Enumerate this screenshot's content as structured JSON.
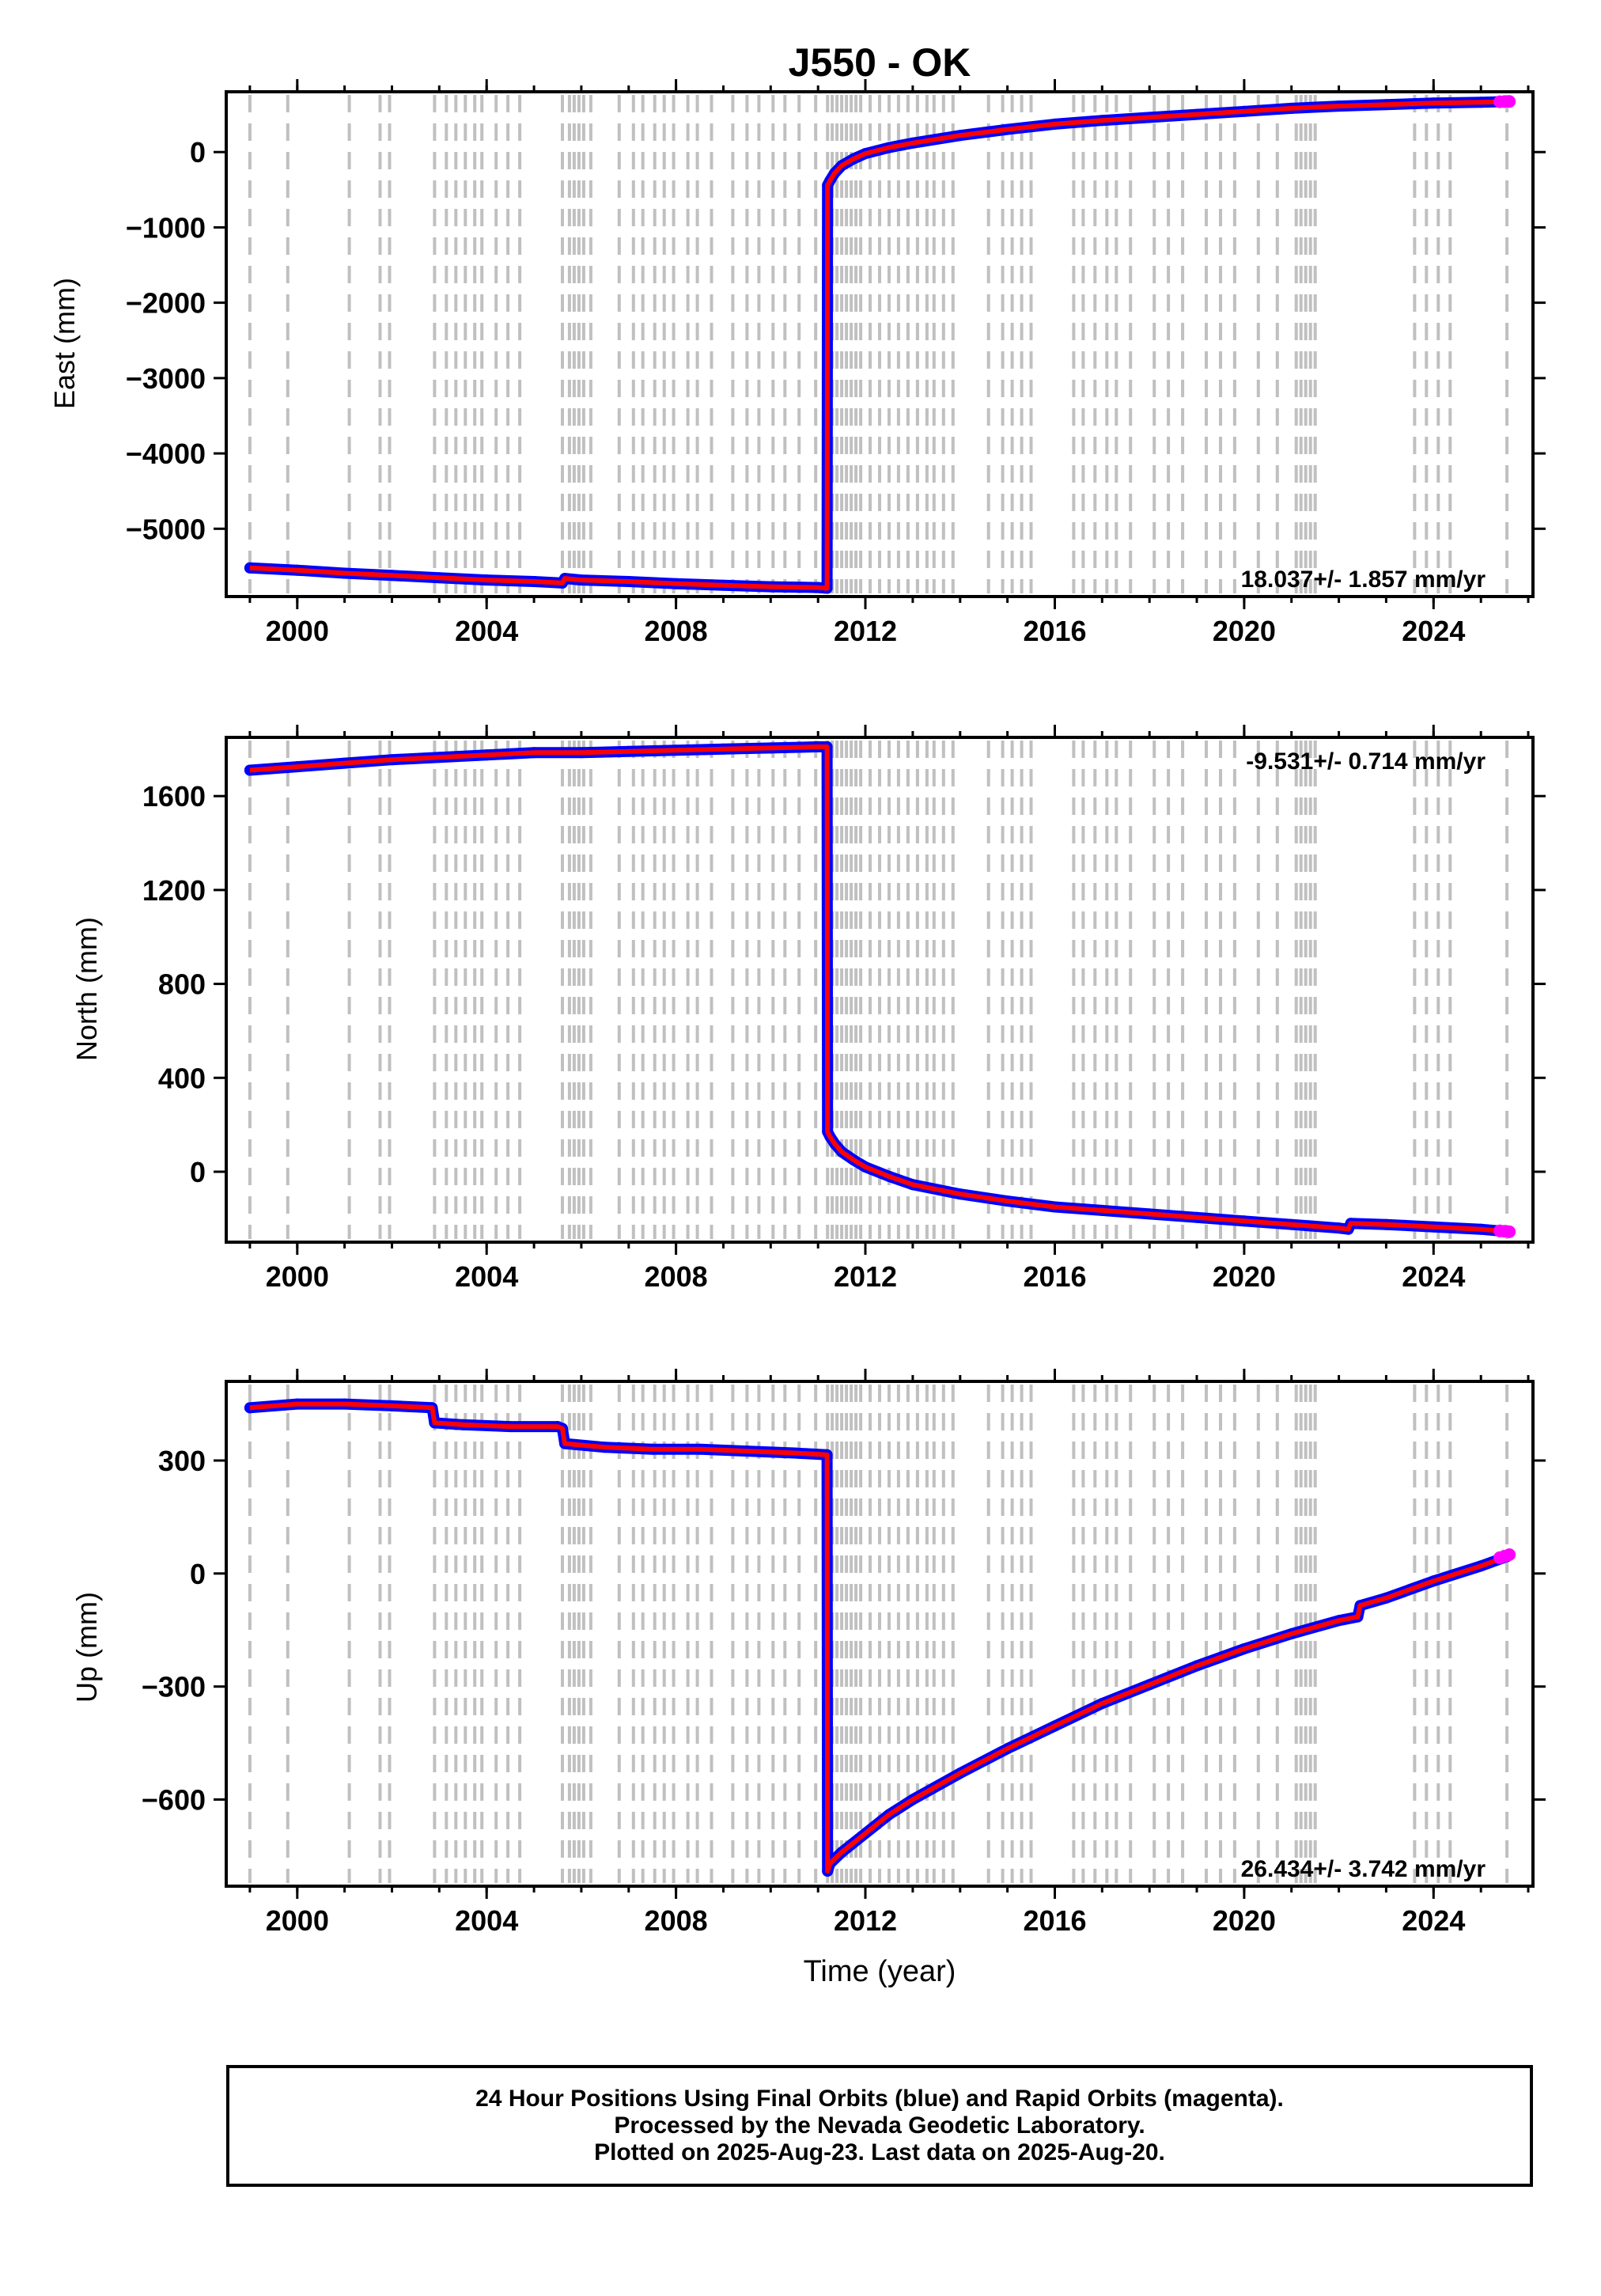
{
  "title": "J550 - OK",
  "xlabel": "Time (year)",
  "footer": {
    "line1": "24 Hour Positions Using Final Orbits (blue) and Rapid Orbits (magenta).",
    "line2": "Processed by the Nevada Geodetic Laboratory.",
    "line3": "Plotted on 2025-Aug-23. Last data on 2025-Aug-20."
  },
  "colors": {
    "final_orbits": "#0000ff",
    "rapid_orbits": "#ff00ff",
    "model_fit": "#ff0000",
    "event_lines": "#c0c0c0",
    "frame": "#000000"
  },
  "event_lines_years": [
    1999.0,
    1999.8,
    2001.1,
    2001.75,
    2001.95,
    2002.9,
    2003.15,
    2003.35,
    2003.55,
    2003.75,
    2003.9,
    2004.2,
    2004.45,
    2004.7,
    2005.6,
    2005.75,
    2005.85,
    2005.95,
    2006.05,
    2006.2,
    2006.8,
    2007.1,
    2007.3,
    2007.55,
    2007.75,
    2007.95,
    2008.25,
    2008.45,
    2008.75,
    2009.2,
    2009.5,
    2009.75,
    2010.05,
    2010.3,
    2010.6,
    2010.95,
    2011.2,
    2011.3,
    2011.4,
    2011.5,
    2011.6,
    2011.7,
    2011.8,
    2011.9,
    2012.1,
    2012.3,
    2012.5,
    2012.7,
    2012.9,
    2013.1,
    2013.3,
    2013.45,
    2013.65,
    2013.85,
    2014.6,
    2014.9,
    2015.1,
    2015.3,
    2015.5,
    2016.4,
    2016.6,
    2016.85,
    2017.1,
    2017.3,
    2017.6,
    2018.1,
    2018.4,
    2018.7,
    2019.2,
    2019.5,
    2019.8,
    2020.3,
    2020.7,
    2021.1,
    2021.2,
    2021.3,
    2021.4,
    2021.5,
    2023.6,
    2023.85,
    2024.1,
    2024.35,
    2025.55
  ],
  "chart_data": [
    {
      "type": "scatter",
      "panel": "east",
      "ylabel": "East (mm)",
      "rate_label": "18.037+/- 1.857 mm/yr",
      "rate_position": "bottom-right",
      "xlim": [
        1998.5,
        2026.1
      ],
      "ylim": [
        -5900,
        800
      ],
      "xticks": [
        2000,
        2004,
        2008,
        2012,
        2016,
        2020,
        2024
      ],
      "yticks": [
        0,
        -1000,
        -2000,
        -3000,
        -4000,
        -5000
      ],
      "ytick_labels": [
        "0",
        "−1000",
        "−2000",
        "−3000",
        "−4000",
        "−5000"
      ],
      "series": [
        {
          "name": "Final Orbits",
          "color": "#0000ff",
          "x": [
            1999.0,
            2000.0,
            2001.0,
            2002.0,
            2003.0,
            2004.0,
            2005.0,
            2005.6,
            2005.65,
            2006.0,
            2007.0,
            2008.0,
            2009.0,
            2010.0,
            2011.0,
            2011.19,
            2011.2,
            2011.25,
            2011.35,
            2011.5,
            2011.75,
            2012.0,
            2012.5,
            2013.0,
            2014.0,
            2015.0,
            2016.0,
            2017.0,
            2018.0,
            2019.0,
            2020.0,
            2021.0,
            2022.0,
            2023.0,
            2024.0,
            2025.0,
            2025.55
          ],
          "y": [
            -5520,
            -5550,
            -5590,
            -5620,
            -5650,
            -5680,
            -5700,
            -5720,
            -5660,
            -5680,
            -5700,
            -5730,
            -5750,
            -5770,
            -5780,
            -5790,
            -440,
            -380,
            -280,
            -180,
            -90,
            -20,
            60,
            120,
            220,
            300,
            370,
            420,
            460,
            500,
            540,
            580,
            610,
            630,
            650,
            660,
            670
          ]
        },
        {
          "name": "Rapid Orbits",
          "color": "#ff00ff",
          "x": [
            2025.4,
            2025.5,
            2025.6
          ],
          "y": [
            668,
            670,
            672
          ]
        }
      ]
    },
    {
      "type": "scatter",
      "panel": "north",
      "ylabel": "North (mm)",
      "rate_label": "-9.531+/- 0.714 mm/yr",
      "rate_position": "top-right",
      "xlim": [
        1998.5,
        2026.1
      ],
      "ylim": [
        -300,
        1850
      ],
      "xticks": [
        2000,
        2004,
        2008,
        2012,
        2016,
        2020,
        2024
      ],
      "yticks": [
        1600,
        1200,
        800,
        400,
        0
      ],
      "ytick_labels": [
        "1600",
        "1200",
        "800",
        "400",
        "0"
      ],
      "series": [
        {
          "name": "Final Orbits",
          "color": "#0000ff",
          "x": [
            1999.0,
            2000.0,
            2001.0,
            2002.0,
            2003.0,
            2004.0,
            2005.0,
            2006.0,
            2007.0,
            2008.0,
            2009.0,
            2010.0,
            2011.0,
            2011.19,
            2011.2,
            2011.25,
            2011.35,
            2011.5,
            2011.75,
            2012.0,
            2012.5,
            2013.0,
            2014.0,
            2015.0,
            2016.0,
            2017.0,
            2018.0,
            2019.0,
            2020.0,
            2021.0,
            2022.0,
            2022.2,
            2022.25,
            2023.0,
            2024.0,
            2025.0,
            2025.55
          ],
          "y": [
            1710,
            1725,
            1740,
            1755,
            1765,
            1775,
            1785,
            1785,
            1790,
            1795,
            1800,
            1805,
            1810,
            1810,
            170,
            150,
            120,
            85,
            50,
            20,
            -20,
            -55,
            -95,
            -125,
            -150,
            -165,
            -180,
            -195,
            -210,
            -225,
            -240,
            -245,
            -220,
            -225,
            -235,
            -245,
            -255
          ]
        },
        {
          "name": "Rapid Orbits",
          "color": "#ff00ff",
          "x": [
            2025.4,
            2025.5,
            2025.6
          ],
          "y": [
            -252,
            -254,
            -256
          ]
        }
      ]
    },
    {
      "type": "scatter",
      "panel": "up",
      "ylabel": "Up (mm)",
      "rate_label": "26.434+/- 3.742 mm/yr",
      "rate_position": "bottom-right",
      "xlim": [
        1998.5,
        2026.1
      ],
      "ylim": [
        -830,
        510
      ],
      "xticks": [
        2000,
        2004,
        2008,
        2012,
        2016,
        2020,
        2024
      ],
      "yticks": [
        300,
        0,
        -300,
        -600
      ],
      "ytick_labels": [
        "300",
        "0",
        "−300",
        "−600"
      ],
      "series": [
        {
          "name": "Final Orbits",
          "color": "#0000ff",
          "x": [
            1999.0,
            2000.0,
            2001.0,
            2002.0,
            2002.85,
            2002.9,
            2003.5,
            2004.5,
            2005.5,
            2005.6,
            2005.65,
            2006.5,
            2007.5,
            2008.5,
            2009.5,
            2010.5,
            2011.19,
            2011.2,
            2011.25,
            2011.5,
            2012.0,
            2012.5,
            2013.0,
            2014.0,
            2015.0,
            2016.0,
            2017.0,
            2018.0,
            2019.0,
            2020.0,
            2021.0,
            2022.0,
            2022.4,
            2022.45,
            2023.0,
            2024.0,
            2025.0,
            2025.55
          ],
          "y": [
            440,
            450,
            450,
            445,
            440,
            400,
            395,
            390,
            390,
            385,
            345,
            335,
            330,
            330,
            325,
            320,
            315,
            -790,
            -770,
            -740,
            -690,
            -640,
            -600,
            -530,
            -465,
            -405,
            -345,
            -295,
            -245,
            -200,
            -160,
            -125,
            -115,
            -85,
            -65,
            -20,
            20,
            45
          ]
        },
        {
          "name": "Rapid Orbits",
          "color": "#ff00ff",
          "x": [
            2025.4,
            2025.5,
            2025.6
          ],
          "y": [
            42,
            46,
            50
          ]
        }
      ]
    }
  ]
}
